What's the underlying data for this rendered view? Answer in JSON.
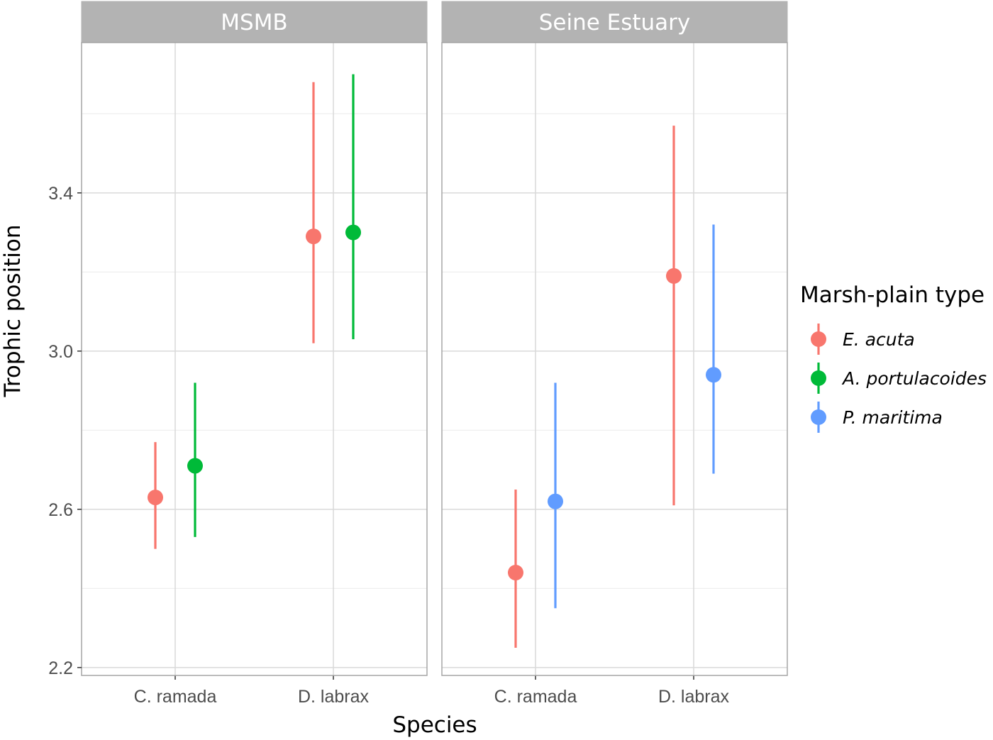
{
  "chart_data": {
    "type": "scatter",
    "subtype": "pointrange",
    "facets": [
      "MSMB",
      "Seine Estuary"
    ],
    "categories": [
      "C. ramada",
      "D. labrax"
    ],
    "xlabel": "Species",
    "ylabel": "Trophic position",
    "ylim": [
      2.18,
      3.78
    ],
    "yticks": [
      "2.2",
      "2.6",
      "3.0",
      "3.4"
    ],
    "grid": true,
    "legend": {
      "title": "Marsh-plain type",
      "position": "right",
      "items": [
        {
          "label": "E. acuta",
          "color": "#F8766D"
        },
        {
          "label": "A. portulacoides",
          "color": "#00BA38"
        },
        {
          "label": "P. maritima",
          "color": "#619CFF"
        }
      ]
    },
    "series": [
      {
        "facet": "MSMB",
        "name": "E. acuta",
        "color": "#F8766D",
        "points": [
          {
            "category": "C. ramada",
            "y": 2.63,
            "ymin": 2.5,
            "ymax": 2.77
          },
          {
            "category": "D. labrax",
            "y": 3.29,
            "ymin": 3.02,
            "ymax": 3.68
          }
        ]
      },
      {
        "facet": "MSMB",
        "name": "A. portulacoides",
        "color": "#00BA38",
        "points": [
          {
            "category": "C. ramada",
            "y": 2.71,
            "ymin": 2.53,
            "ymax": 2.92
          },
          {
            "category": "D. labrax",
            "y": 3.3,
            "ymin": 3.03,
            "ymax": 3.7
          }
        ]
      },
      {
        "facet": "Seine Estuary",
        "name": "E. acuta",
        "color": "#F8766D",
        "points": [
          {
            "category": "C. ramada",
            "y": 2.44,
            "ymin": 2.25,
            "ymax": 2.65
          },
          {
            "category": "D. labrax",
            "y": 3.19,
            "ymin": 2.61,
            "ymax": 3.57
          }
        ]
      },
      {
        "facet": "Seine Estuary",
        "name": "P. maritima",
        "color": "#619CFF",
        "points": [
          {
            "category": "C. ramada",
            "y": 2.62,
            "ymin": 2.35,
            "ymax": 2.92
          },
          {
            "category": "D. labrax",
            "y": 2.94,
            "ymin": 2.69,
            "ymax": 3.32
          }
        ]
      }
    ]
  }
}
